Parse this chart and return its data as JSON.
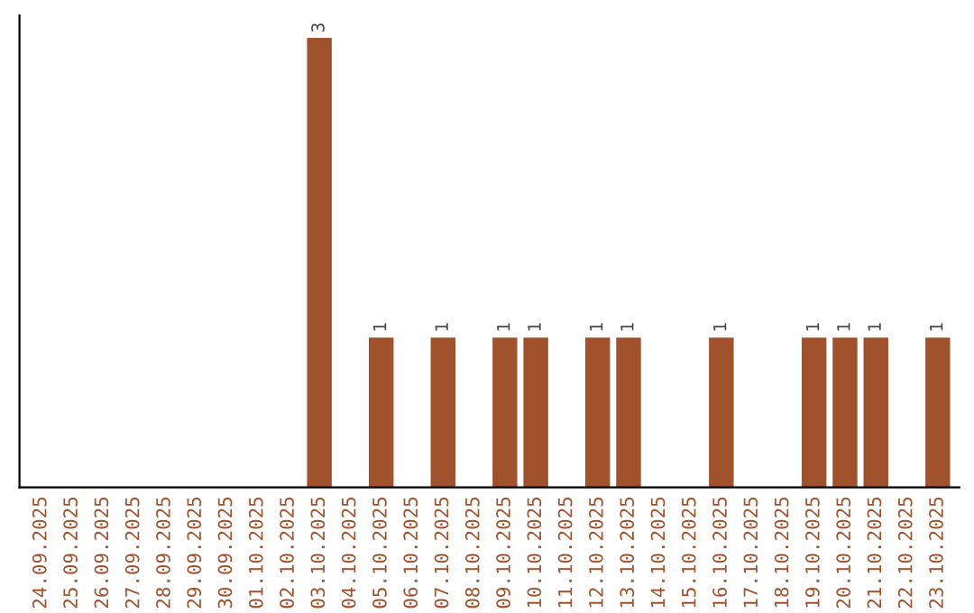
{
  "chart_data": {
    "type": "bar",
    "categories": [
      "24.09.2025",
      "25.09.2025",
      "26.09.2025",
      "27.09.2025",
      "28.09.2025",
      "29.09.2025",
      "30.09.2025",
      "01.10.2025",
      "02.10.2025",
      "03.10.2025",
      "04.10.2025",
      "05.10.2025",
      "06.10.2025",
      "07.10.2025",
      "08.10.2025",
      "09.10.2025",
      "10.10.2025",
      "11.10.2025",
      "12.10.2025",
      "13.10.2025",
      "14.10.2025",
      "15.10.2025",
      "16.10.2025",
      "17.10.2025",
      "18.10.2025",
      "19.10.2025",
      "20.10.2025",
      "21.10.2025",
      "22.10.2025",
      "23.10.2025"
    ],
    "values": [
      0,
      0,
      0,
      0,
      0,
      0,
      0,
      0,
      0,
      3,
      0,
      1,
      0,
      1,
      0,
      1,
      1,
      0,
      1,
      1,
      0,
      0,
      1,
      0,
      0,
      1,
      1,
      1,
      0,
      1
    ],
    "value_labels": [
      null,
      null,
      null,
      null,
      null,
      null,
      null,
      null,
      null,
      "3",
      null,
      "1",
      null,
      "1",
      null,
      "1",
      "1",
      null,
      "1",
      "1",
      null,
      null,
      "1",
      null,
      null,
      "1",
      "1",
      "1",
      null,
      "1"
    ],
    "color": "#a0522d",
    "tick_labels": "x",
    "grid": false,
    "legend": false
  }
}
